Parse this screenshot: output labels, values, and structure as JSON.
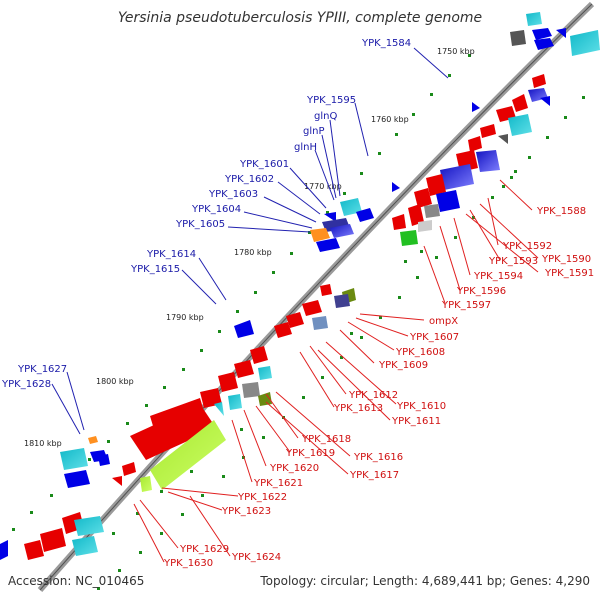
{
  "title": "Yersinia pseudotuberculosis YPIII, complete genome",
  "accession": "Accession: NC_010465",
  "summary": "Topology: circular; Length: 4,689,441 bp; Genes: 4,290",
  "ticks": [
    "1750 kbp",
    "1760 kbp",
    "1770 kbp",
    "1780 kbp",
    "1790 kbp",
    "1800 kbp",
    "1810 kbp"
  ],
  "labels_plus": [
    "YPK_1584",
    "YPK_1595",
    "glnQ",
    "glnP",
    "glnH",
    "YPK_1601",
    "YPK_1602",
    "YPK_1603",
    "YPK_1604",
    "YPK_1605",
    "YPK_1614",
    "YPK_1615",
    "YPK_1627",
    "YPK_1628"
  ],
  "labels_minus": [
    "YPK_1588",
    "YPK_1592",
    "YPK_1590",
    "YPK_1593",
    "YPK_1591",
    "YPK_1594",
    "YPK_1596",
    "YPK_1597",
    "ompX",
    "YPK_1607",
    "YPK_1608",
    "YPK_1609",
    "YPK_1612",
    "YPK_1610",
    "YPK_1613",
    "YPK_1611",
    "YPK_1618",
    "YPK_1616",
    "YPK_1619",
    "YPK_1617",
    "YPK_1620",
    "YPK_1621",
    "YPK_1622",
    "YPK_1623",
    "YPK_1629",
    "YPK_1624",
    "YPK_1630"
  ],
  "colors": {
    "plus_gene": "#0000e6",
    "minus_gene": "#e60000",
    "backbone": "#808080",
    "tick_dot": "#1a8a1a",
    "label_plus": "#1a1aa8",
    "label_minus": "#d01010"
  }
}
